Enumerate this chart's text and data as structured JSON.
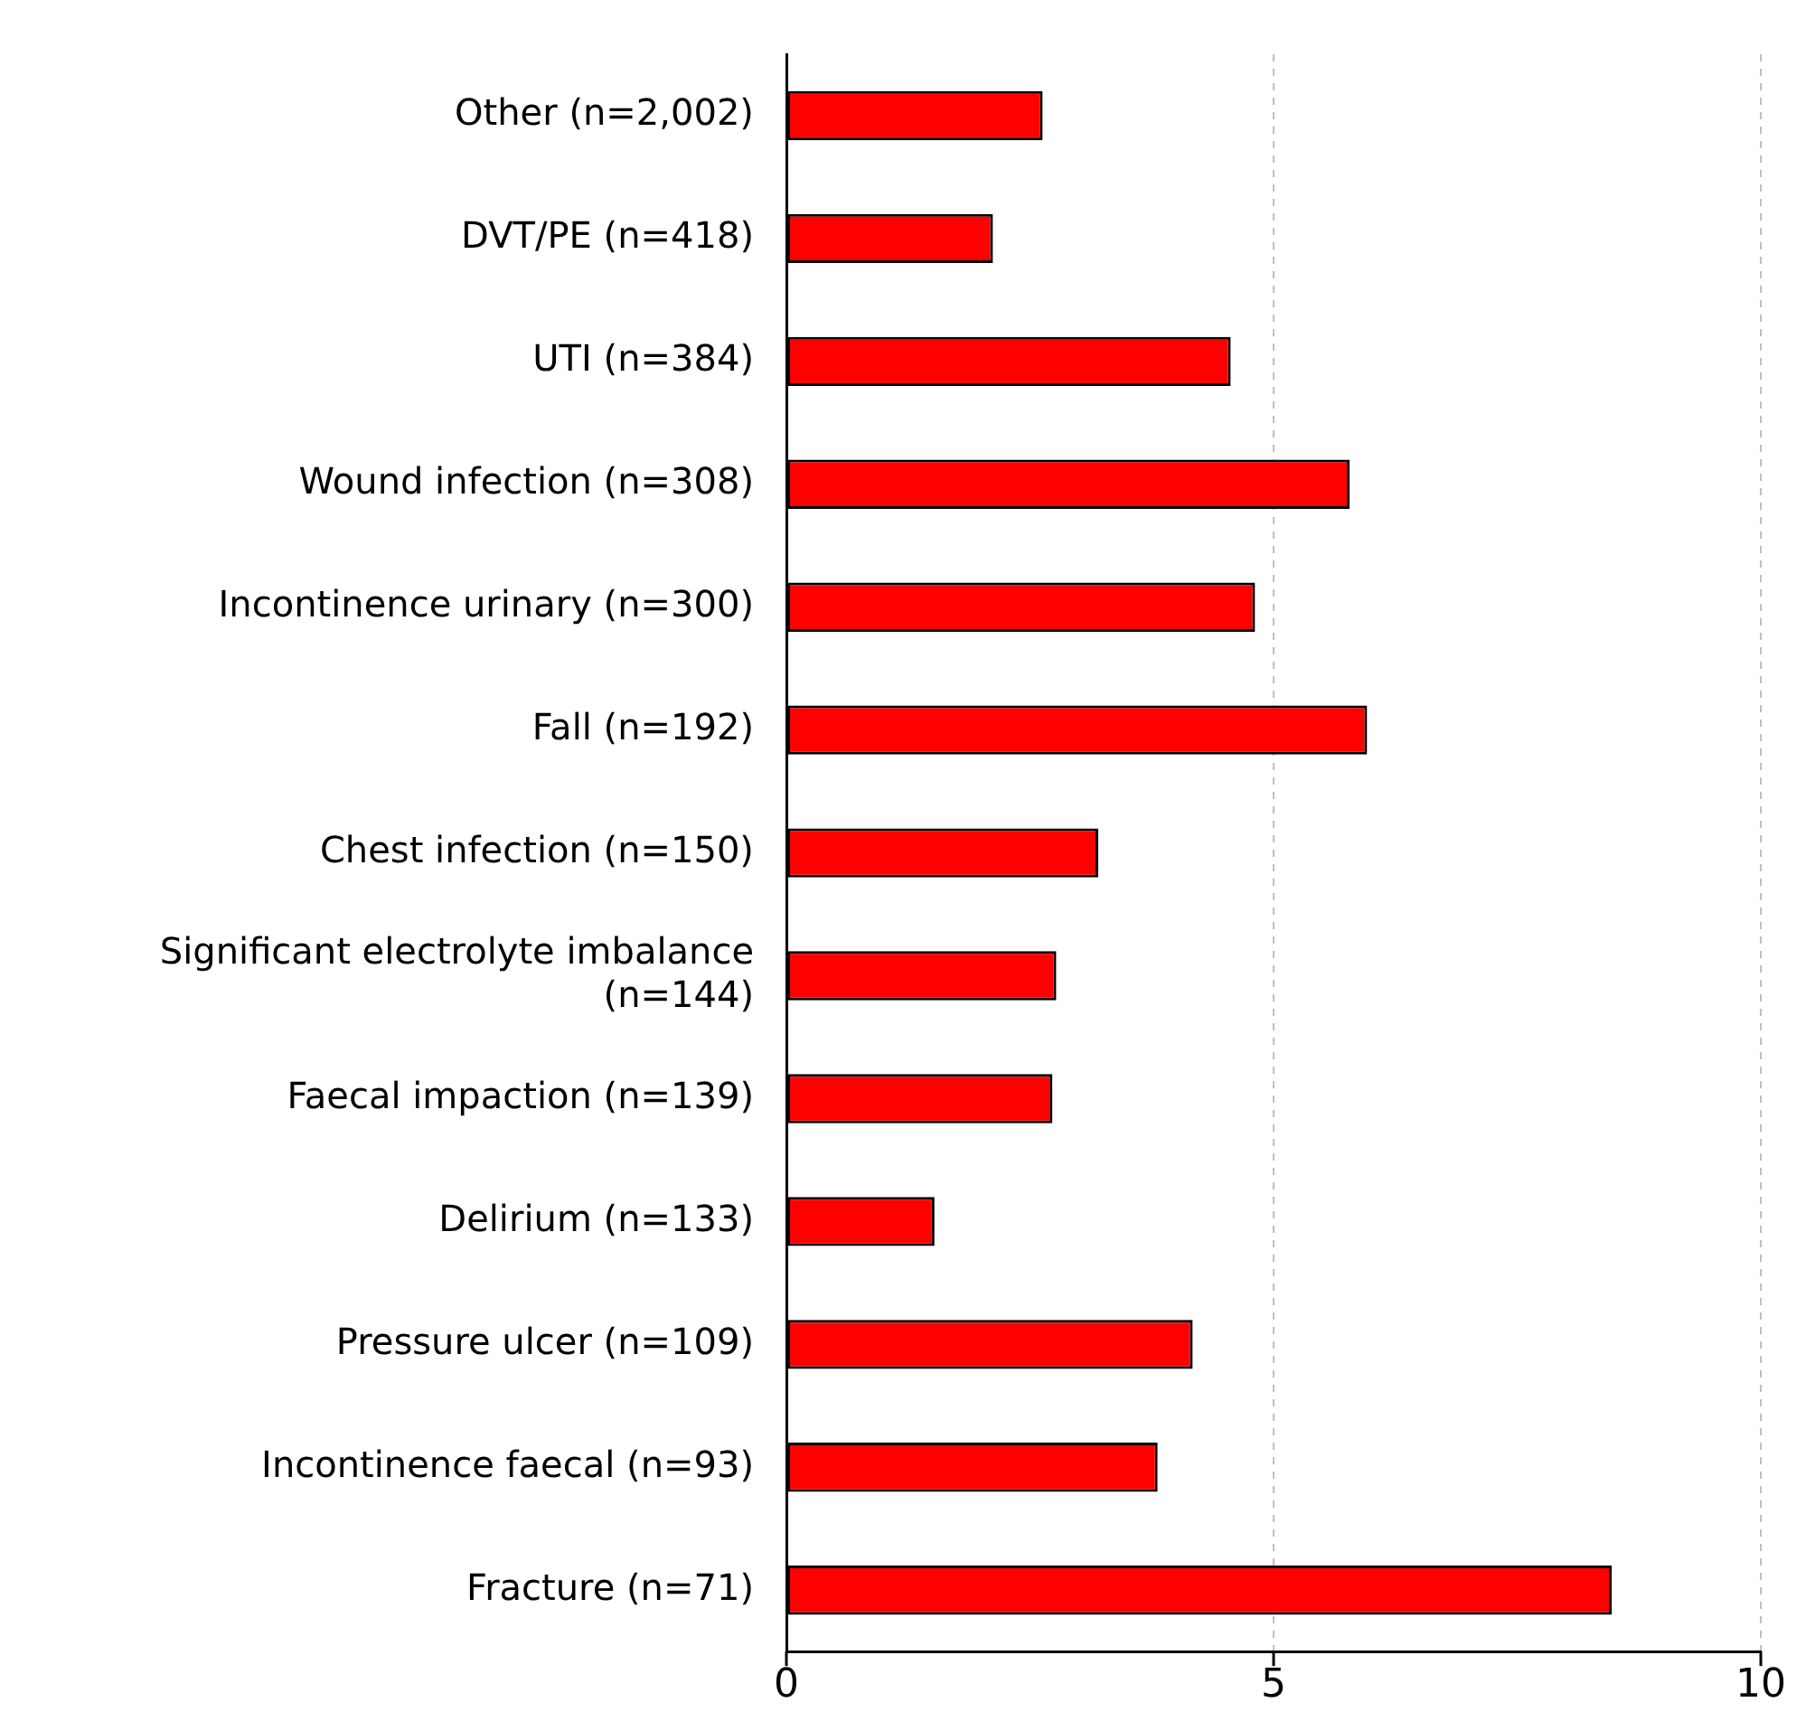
{
  "chart_data": {
    "type": "bar",
    "orientation": "horizontal",
    "categories": [
      "Other (n=2,002)",
      "DVT/PE (n=418)",
      "UTI (n=384)",
      "Wound infection (n=308)",
      "Incontinence urinary (n=300)",
      "Fall (n=192)",
      "Chest infection (n=150)",
      "Significant electrolyte imbalance (n=144)",
      "Faecal impaction (n=139)",
      "Delirium (n=133)",
      "Pressure ulcer (n=109)",
      "Incontinence faecal (n=93)",
      "Fracture (n=71)"
    ],
    "values": [
      2.63,
      2.12,
      4.56,
      5.78,
      4.81,
      5.96,
      3.2,
      2.77,
      2.73,
      1.52,
      4.17,
      3.81,
      8.47
    ],
    "color": "#ff0000",
    "xlim": [
      0,
      10
    ],
    "xticks": [
      0,
      5,
      10
    ],
    "grid": "x",
    "legend": false
  }
}
